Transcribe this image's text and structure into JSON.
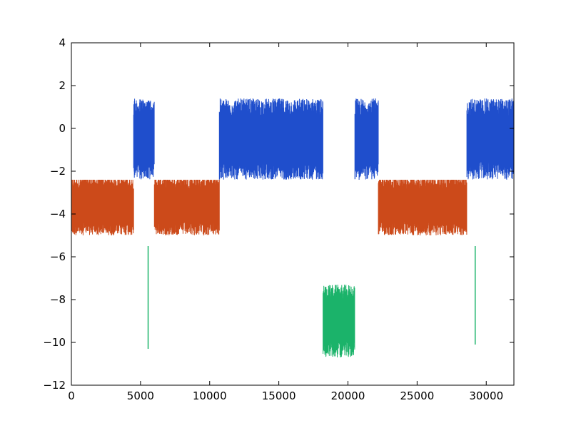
{
  "chart_data": {
    "type": "line",
    "title": "",
    "xlabel": "",
    "ylabel": "",
    "xlim": [
      0,
      32000
    ],
    "ylim": [
      -12,
      4
    ],
    "x_ticks": [
      0,
      5000,
      10000,
      15000,
      20000,
      25000,
      30000
    ],
    "y_ticks": [
      -12,
      -10,
      -8,
      -6,
      -4,
      -2,
      0,
      2,
      4
    ],
    "x_tick_labels": [
      "0",
      "5000",
      "10000",
      "15000",
      "20000",
      "25000",
      "30000"
    ],
    "y_tick_labels": [
      "−12",
      "−10",
      "−8",
      "−6",
      "−4",
      "−2",
      "0",
      "2",
      "4"
    ],
    "grid": false,
    "legend": "none",
    "colors": {
      "high": "#1f4ecc",
      "mid": "#cc4a1a",
      "low": "#1bb36a"
    },
    "series": [
      {
        "color_key": "mid",
        "value_range": [
          -5.5,
          -2.4
        ],
        "segments": [
          {
            "x_start": 0,
            "x_end": 4500,
            "center": -3.6,
            "spread": 1.4
          },
          {
            "x_start": 6000,
            "x_end": 10700,
            "center": -3.6,
            "spread": 1.4
          },
          {
            "x_start": 22200,
            "x_end": 28600,
            "center": -3.6,
            "spread": 1.4
          }
        ]
      },
      {
        "color_key": "high",
        "value_range": [
          -2.4,
          2.2
        ],
        "segments": [
          {
            "x_start": 4500,
            "x_end": 6000,
            "center": -0.5,
            "spread": 1.9
          },
          {
            "x_start": 10700,
            "x_end": 18200,
            "center": -0.5,
            "spread": 1.9
          },
          {
            "x_start": 20500,
            "x_end": 22200,
            "center": -0.5,
            "spread": 1.9
          },
          {
            "x_start": 28600,
            "x_end": 32000,
            "center": -0.5,
            "spread": 1.9
          }
        ]
      },
      {
        "color_key": "low",
        "value_range": [
          -10.8,
          -5.5
        ],
        "segments": [
          {
            "x_start": 18200,
            "x_end": 20500,
            "center": -9.0,
            "spread": 1.7
          }
        ],
        "spikes": [
          {
            "x": 5550,
            "y": -10.3
          },
          {
            "x": 29200,
            "y": -10.1
          }
        ]
      }
    ]
  }
}
